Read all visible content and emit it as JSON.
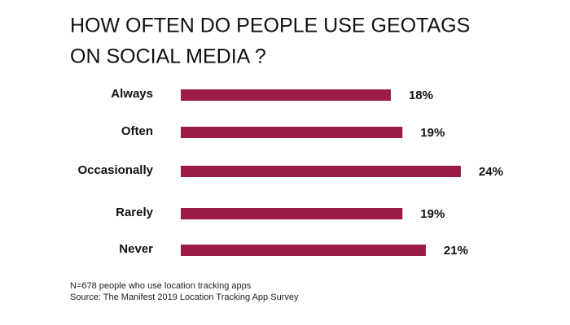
{
  "chart_data": {
    "type": "bar",
    "orientation": "horizontal",
    "title": [
      "HOW OFTEN DO PEOPLE USE GEOTAGS",
      "ON SOCIAL MEDIA ?"
    ],
    "categories": [
      "Always",
      "Often",
      "Occasionally",
      "Rarely",
      "Never"
    ],
    "values": [
      18,
      19,
      24,
      19,
      21
    ],
    "value_labels": [
      "18%",
      "19%",
      "24%",
      "19%",
      "21%"
    ],
    "color": "#9b1b47",
    "notes": [
      "N=678 people who use location tracking apps",
      "Source: The Manifest 2019 Location Tracking App Survey"
    ]
  }
}
